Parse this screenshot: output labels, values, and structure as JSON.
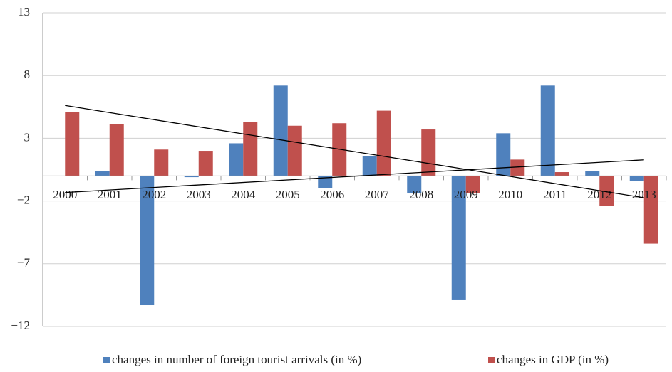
{
  "chart_data": {
    "type": "bar",
    "categories": [
      "2000",
      "2001",
      "2002",
      "2003",
      "2004",
      "2005",
      "2006",
      "2007",
      "2008",
      "2009",
      "2010",
      "2011",
      "2012",
      "2013"
    ],
    "series": [
      {
        "name": "changes in number of foreign tourist arrivals (in %)",
        "color": "#4f81bd",
        "values": [
          0,
          0.4,
          -10.3,
          -0.1,
          2.6,
          7.2,
          -1.0,
          1.6,
          -1.4,
          -9.9,
          3.4,
          7.2,
          0.4,
          -0.4
        ]
      },
      {
        "name": "changes in GDP (in %)",
        "color": "#c0504d",
        "values": [
          5.1,
          4.1,
          2.1,
          2.0,
          4.3,
          4.0,
          4.2,
          5.2,
          3.7,
          -1.4,
          1.3,
          0.3,
          -2.4,
          -5.4
        ]
      }
    ],
    "ylim": [
      -12,
      13
    ],
    "yticks": [
      {
        "value": -12,
        "label": "−12"
      },
      {
        "value": -7,
        "label": "−7"
      },
      {
        "value": -2,
        "label": "−2"
      },
      3,
      8,
      13
    ],
    "grid": true,
    "trendline": true,
    "legend": "bottom"
  }
}
